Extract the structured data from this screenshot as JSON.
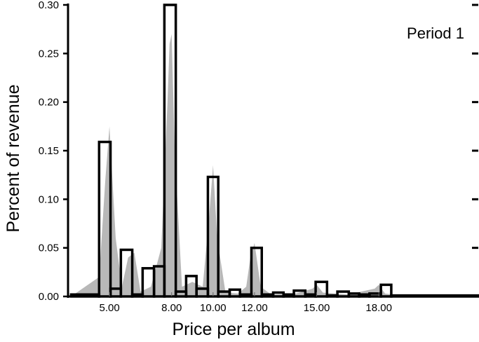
{
  "chart_data": {
    "type": "bar",
    "annotation": "Period 1",
    "xlabel": "Price per album",
    "ylabel": "Percent of revenue",
    "ylim": [
      0,
      0.3
    ],
    "xlim": [
      3.0,
      22.8
    ],
    "y_ticks": [
      0.0,
      0.05,
      0.1,
      0.15,
      0.2,
      0.25,
      0.3
    ],
    "y_tick_labels": [
      "0.00",
      "0.05",
      "0.10",
      "0.15",
      "0.20",
      "0.25",
      "0.30"
    ],
    "x_tick_labels": [
      {
        "value": 5.0,
        "label": "5.00"
      },
      {
        "value": 8.0,
        "label": "8.00"
      },
      {
        "value": 10.0,
        "label": "10.00"
      },
      {
        "value": 12.0,
        "label": "12.00"
      },
      {
        "value": 15.0,
        "label": "15.00"
      },
      {
        "value": 18.0,
        "label": "18.00"
      }
    ],
    "series": [
      {
        "role": "histogram",
        "bins": [
          {
            "start": 3.15,
            "end": 4.5,
            "value": 0.002
          },
          {
            "start": 4.5,
            "end": 5.05,
            "value": 0.159
          },
          {
            "start": 5.05,
            "end": 5.55,
            "value": 0.008
          },
          {
            "start": 5.55,
            "end": 6.1,
            "value": 0.048
          },
          {
            "start": 6.1,
            "end": 6.6,
            "value": 0.002
          },
          {
            "start": 6.6,
            "end": 7.15,
            "value": 0.029
          },
          {
            "start": 7.15,
            "end": 7.65,
            "value": 0.031
          },
          {
            "start": 7.65,
            "end": 8.2,
            "value": 0.3
          },
          {
            "start": 8.2,
            "end": 8.7,
            "value": 0.005
          },
          {
            "start": 8.7,
            "end": 9.2,
            "value": 0.021
          },
          {
            "start": 9.2,
            "end": 9.75,
            "value": 0.008
          },
          {
            "start": 9.75,
            "end": 10.25,
            "value": 0.123
          },
          {
            "start": 10.25,
            "end": 10.8,
            "value": 0.005
          },
          {
            "start": 10.8,
            "end": 11.3,
            "value": 0.007
          },
          {
            "start": 11.3,
            "end": 11.85,
            "value": 0.002
          },
          {
            "start": 11.85,
            "end": 12.35,
            "value": 0.05
          },
          {
            "start": 12.35,
            "end": 12.9,
            "value": 0.002
          },
          {
            "start": 12.9,
            "end": 13.4,
            "value": 0.004
          },
          {
            "start": 13.4,
            "end": 13.9,
            "value": 0.002
          },
          {
            "start": 13.9,
            "end": 14.45,
            "value": 0.006
          },
          {
            "start": 14.45,
            "end": 14.95,
            "value": 0.002
          },
          {
            "start": 14.95,
            "end": 15.5,
            "value": 0.015
          },
          {
            "start": 15.5,
            "end": 16.0,
            "value": 0.001
          },
          {
            "start": 16.0,
            "end": 16.55,
            "value": 0.005
          },
          {
            "start": 16.55,
            "end": 17.05,
            "value": 0.003
          },
          {
            "start": 17.05,
            "end": 17.55,
            "value": 0.002
          },
          {
            "start": 17.55,
            "end": 18.1,
            "value": 0.003
          },
          {
            "start": 18.1,
            "end": 18.6,
            "value": 0.012
          },
          {
            "start": 18.6,
            "end": 22.8,
            "value": 0.001
          }
        ]
      },
      {
        "role": "density",
        "x": [
          3.15,
          4.5,
          4.8,
          5.0,
          5.3,
          5.6,
          5.9,
          6.2,
          6.5,
          7.0,
          7.5,
          7.8,
          7.9,
          8.0,
          8.15,
          8.5,
          9.0,
          9.5,
          9.8,
          10.0,
          10.2,
          10.6,
          11.2,
          11.6,
          11.8,
          12.0,
          12.3,
          12.8,
          14.0,
          14.8,
          15.0,
          15.3,
          16.5,
          17.8,
          18.0,
          18.3,
          19.5,
          22.8
        ],
        "values": [
          0.0,
          0.02,
          0.12,
          0.175,
          0.06,
          0.01,
          0.04,
          0.045,
          0.005,
          0.01,
          0.05,
          0.2,
          0.26,
          0.27,
          0.15,
          0.01,
          0.015,
          0.01,
          0.08,
          0.135,
          0.06,
          0.004,
          0.003,
          0.01,
          0.04,
          0.055,
          0.01,
          0.002,
          0.003,
          0.008,
          0.012,
          0.004,
          0.002,
          0.008,
          0.012,
          0.003,
          0.0,
          0.0
        ]
      }
    ],
    "colors": {
      "density_fill": "#b8b8b8",
      "bar_stroke": "#000000",
      "bar_fill": "#ffffff",
      "axis": "#000000"
    },
    "grid": false
  }
}
